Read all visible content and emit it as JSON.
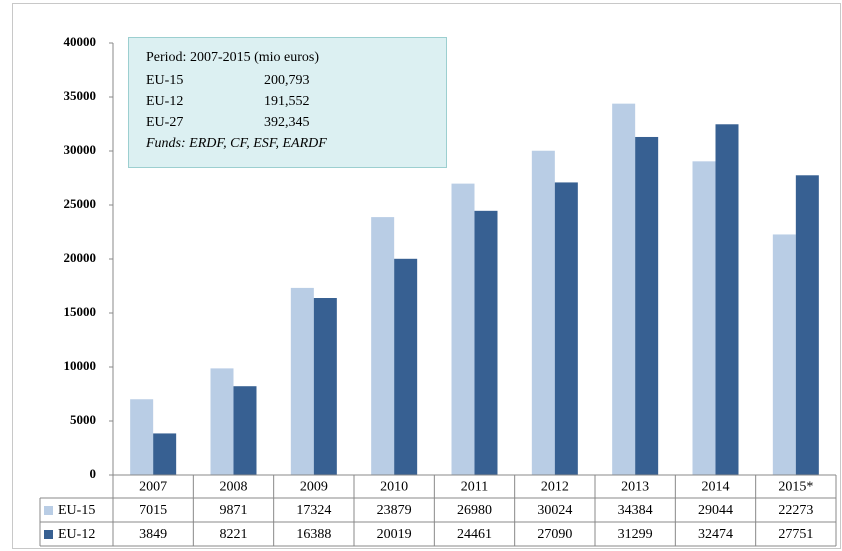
{
  "chart_data": {
    "type": "bar",
    "categories": [
      "2007",
      "2008",
      "2009",
      "2010",
      "2011",
      "2012",
      "2013",
      "2014",
      "2015*"
    ],
    "series": [
      {
        "name": "EU-15",
        "color": "#b9cde5",
        "values": [
          7015,
          9871,
          17324,
          23879,
          26980,
          30024,
          34384,
          29044,
          22273
        ]
      },
      {
        "name": "EU-12",
        "color": "#376092",
        "values": [
          3849,
          8221,
          16388,
          20019,
          24461,
          27090,
          31299,
          32474,
          27751
        ]
      }
    ],
    "ylim": [
      0,
      40000
    ],
    "yticks": [
      0,
      5000,
      10000,
      15000,
      20000,
      25000,
      30000,
      35000,
      40000
    ],
    "grid": false,
    "annotation": {
      "title": "Period: 2007-2015 (mio euros)",
      "rows": [
        [
          "EU-15",
          "200,793"
        ],
        [
          "EU-12",
          "191,552"
        ],
        [
          "EU-27",
          "392,345"
        ]
      ],
      "note": "Funds: ERDF, CF, ESF, EARDF"
    }
  }
}
